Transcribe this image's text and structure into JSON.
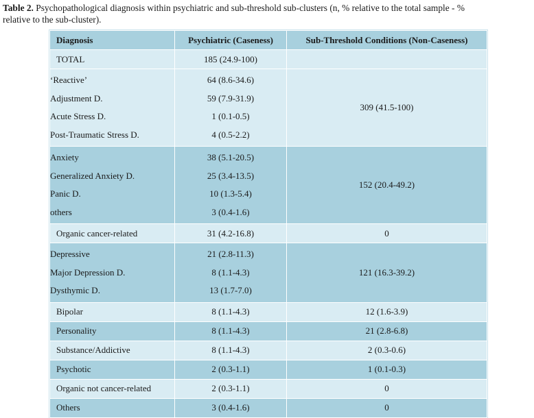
{
  "caption": {
    "label": "Table 2.",
    "text_line1": " Psychopathological diagnosis within psychiatric and sub-threshold sub-clusters (n, % relative to the total sample - %",
    "text_line2": "relative to the sub-cluster)."
  },
  "table": {
    "headers": {
      "diagnosis": "Diagnosis",
      "psychiatric": "Psychiatric (Caseness)",
      "subthreshold": "Sub-Threshold Conditions (Non-Caseness)"
    },
    "total": {
      "label": "TOTAL",
      "psychiatric": "185 (24.9-100)",
      "subthreshold": ""
    },
    "reactive": {
      "labels": [
        "‘Reactive’",
        "Adjustment D.",
        "Acute Stress D.",
        "Post-Traumatic Stress D."
      ],
      "psychiatric": [
        "64 (8.6-34.6)",
        "59 (7.9-31.9)",
        "1 (0.1-0.5)",
        "4 (0.5-2.2)"
      ],
      "subthreshold": "309 (41.5-100)"
    },
    "anxiety": {
      "labels": [
        "Anxiety",
        "Generalized Anxiety D.",
        "Panic D.",
        "others"
      ],
      "psychiatric": [
        "38 (5.1-20.5)",
        "25 (3.4-13.5)",
        "10 (1.3-5.4)",
        "3 (0.4-1.6)"
      ],
      "subthreshold": "152 (20.4-49.2)"
    },
    "organic_cancer": {
      "label": "Organic cancer-related",
      "psychiatric": "31 (4.2-16.8)",
      "subthreshold": "0"
    },
    "depressive": {
      "labels": [
        "Depressive",
        "Major Depression D.",
        "Dysthymic D."
      ],
      "psychiatric": [
        "21 (2.8-11.3)",
        "8 (1.1-4.3)",
        "13 (1.7-7.0)"
      ],
      "subthreshold": "121 (16.3-39.2)"
    },
    "bipolar": {
      "label": "Bipolar",
      "psychiatric": "8 (1.1-4.3)",
      "subthreshold": "12 (1.6-3.9)"
    },
    "personality": {
      "label": "Personality",
      "psychiatric": "8 (1.1-4.3)",
      "subthreshold": "21 (2.8-6.8)"
    },
    "substance": {
      "label": "Substance/Addictive",
      "psychiatric": "8 (1.1-4.3)",
      "subthreshold": "2 (0.3-0.6)"
    },
    "psychotic": {
      "label": "Psychotic",
      "psychiatric": "2 (0.3-1.1)",
      "subthreshold": "1 (0.1-0.3)"
    },
    "organic_not_cancer": {
      "label": "Organic not cancer-related",
      "psychiatric": "2 (0.3-1.1)",
      "subthreshold": "0"
    },
    "others": {
      "label": "Others",
      "psychiatric": "3 (0.4-1.6)",
      "subthreshold": "0"
    }
  },
  "colors": {
    "dark_row": "#a8d0de",
    "light_row": "#d9ecf3",
    "border": "#ffffff"
  }
}
